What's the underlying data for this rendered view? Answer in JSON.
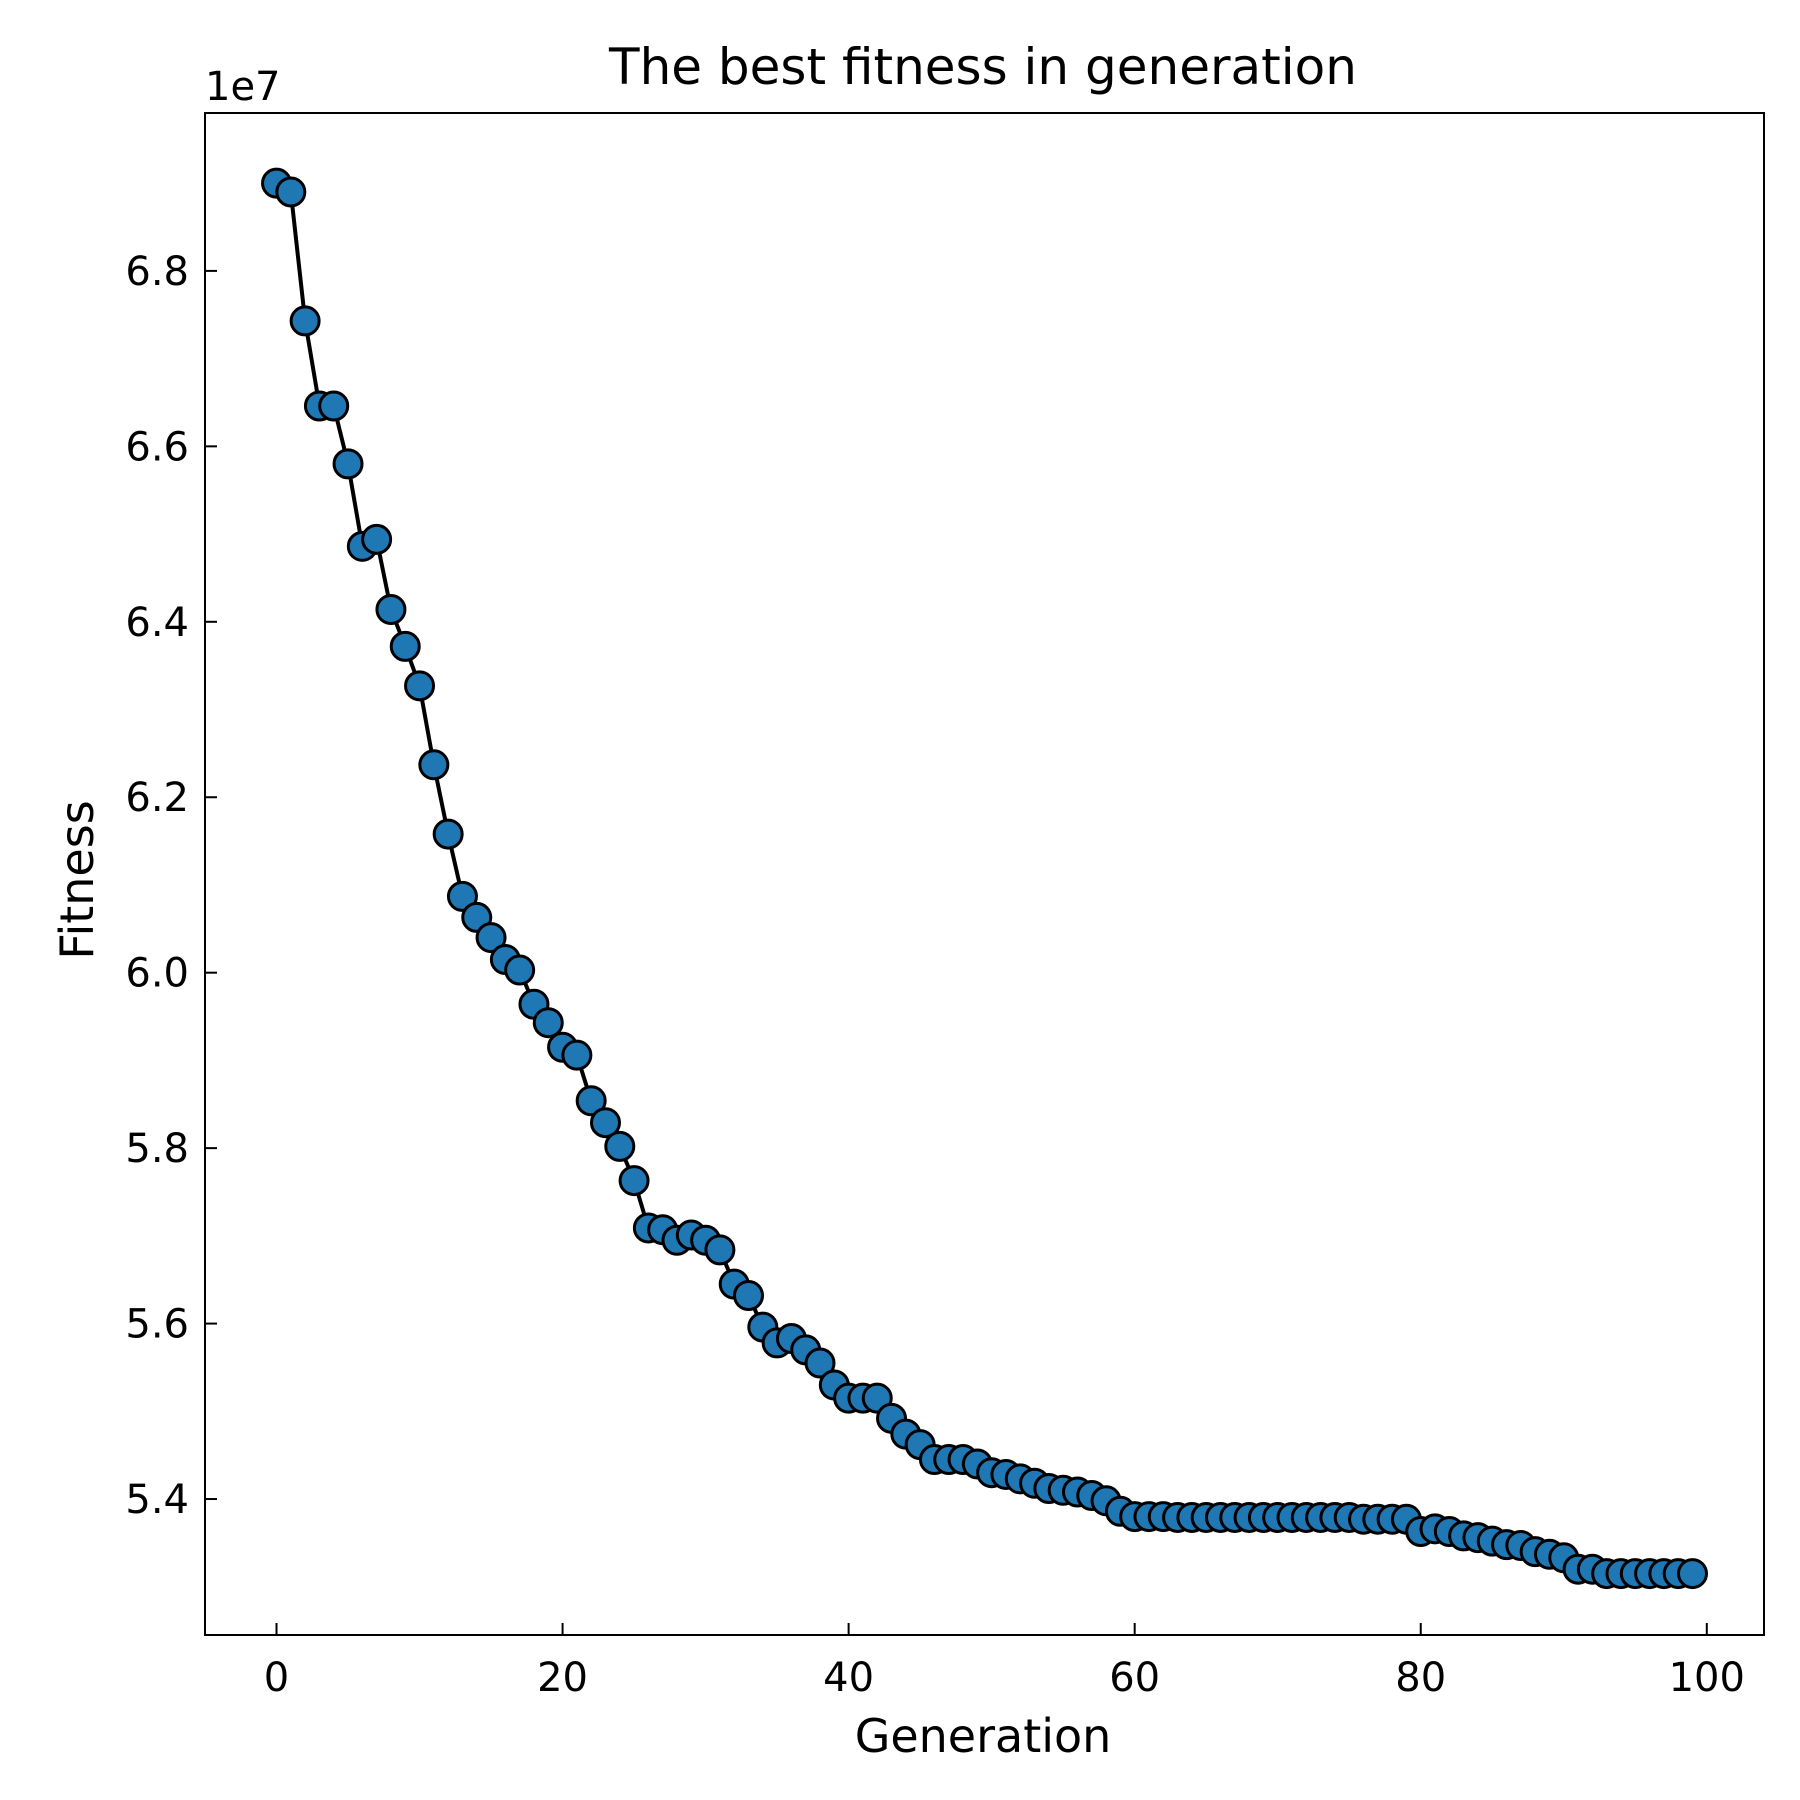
{
  "chart_data": {
    "type": "line",
    "title": "The best fitness in generation",
    "xlabel": "Generation",
    "ylabel": "Fitness",
    "y_offset_label": "1e7",
    "xlim": [
      -5,
      104
    ],
    "ylim": [
      5.245,
      6.98
    ],
    "xticks": [
      0,
      20,
      40,
      60,
      80,
      100
    ],
    "yticks": [
      5.4,
      5.6,
      5.8,
      6.0,
      6.2,
      6.4,
      6.6,
      6.8
    ],
    "xtick_labels": [
      "0",
      "20",
      "40",
      "60",
      "80",
      "100"
    ],
    "ytick_labels": [
      "5.4",
      "5.6",
      "5.8",
      "6.0",
      "6.2",
      "6.4",
      "6.6",
      "6.8"
    ],
    "grid": false,
    "colors": {
      "marker_fill": "#1f77b4",
      "marker_edge": "#000000",
      "line": "#000000"
    },
    "series": [
      {
        "x": [
          0,
          1,
          2,
          3,
          4,
          5,
          6,
          7,
          8,
          9,
          10,
          11,
          12,
          13,
          14,
          15,
          16,
          17,
          18,
          19,
          20,
          21,
          22,
          23,
          24,
          25,
          26,
          27,
          28,
          29,
          30,
          31,
          32,
          33,
          34,
          35,
          36,
          37,
          38,
          39,
          40,
          41,
          42,
          43,
          44,
          45,
          46,
          47,
          48,
          49,
          50,
          51,
          52,
          53,
          54,
          55,
          56,
          57,
          58,
          59,
          60,
          61,
          62,
          63,
          64,
          65,
          66,
          67,
          68,
          69,
          70,
          71,
          72,
          73,
          74,
          75,
          76,
          77,
          78,
          79,
          80,
          81,
          82,
          83,
          84,
          85,
          86,
          87,
          88,
          89,
          90,
          91,
          92,
          93,
          94,
          95,
          96,
          97,
          98,
          99
        ],
        "values": [
          6.9,
          6.89,
          6.743,
          6.646,
          6.646,
          6.58,
          6.486,
          6.494,
          6.414,
          6.372,
          6.327,
          6.237,
          6.158,
          6.087,
          6.063,
          6.04,
          6.015,
          6.003,
          5.964,
          5.943,
          5.915,
          5.906,
          5.854,
          5.829,
          5.802,
          5.763,
          5.709,
          5.707,
          5.695,
          5.701,
          5.695,
          5.684,
          5.645,
          5.632,
          5.596,
          5.578,
          5.583,
          5.57,
          5.555,
          5.53,
          5.515,
          5.515,
          5.515,
          5.492,
          5.474,
          5.462,
          5.445,
          5.445,
          5.445,
          5.44,
          5.43,
          5.428,
          5.423,
          5.418,
          5.412,
          5.41,
          5.408,
          5.404,
          5.398,
          5.386,
          5.38,
          5.38,
          5.38,
          5.379,
          5.379,
          5.379,
          5.379,
          5.379,
          5.379,
          5.379,
          5.379,
          5.379,
          5.379,
          5.379,
          5.379,
          5.379,
          5.377,
          5.377,
          5.377,
          5.377,
          5.363,
          5.366,
          5.363,
          5.358,
          5.356,
          5.352,
          5.348,
          5.347,
          5.34,
          5.337,
          5.333,
          5.32,
          5.32,
          5.315,
          5.315,
          5.315,
          5.315,
          5.315,
          5.315,
          5.315
        ]
      }
    ]
  }
}
